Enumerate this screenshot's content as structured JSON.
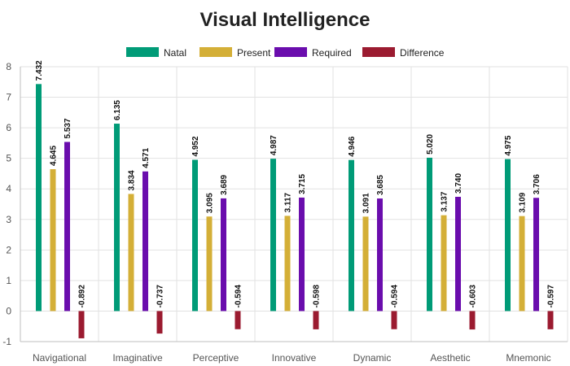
{
  "chart_data": {
    "type": "bar",
    "title": "Visual Intelligence",
    "categories": [
      "Navigational",
      "Imaginative",
      "Perceptive",
      "Innovative",
      "Dynamic",
      "Aesthetic",
      "Mnemonic"
    ],
    "series": [
      {
        "name": "Natal",
        "color": "#009b77",
        "values": [
          7.432,
          6.135,
          4.952,
          4.987,
          4.946,
          5.02,
          4.975
        ]
      },
      {
        "name": "Present",
        "color": "#d4af37",
        "values": [
          4.645,
          3.834,
          3.095,
          3.117,
          3.091,
          3.137,
          3.109
        ]
      },
      {
        "name": "Required",
        "color": "#6a0dad",
        "values": [
          5.537,
          4.571,
          3.689,
          3.715,
          3.685,
          3.74,
          3.706
        ]
      },
      {
        "name": "Difference",
        "color": "#9b1b30",
        "values": [
          -0.892,
          -0.737,
          -0.594,
          -0.598,
          -0.594,
          -0.603,
          -0.597
        ]
      }
    ],
    "xlabel": "",
    "ylabel": "",
    "ylim": [
      -1,
      8
    ],
    "yticks": [
      -1,
      0,
      1,
      2,
      3,
      4,
      5,
      6,
      7,
      8
    ],
    "legend_position": "top-center",
    "grid": true
  }
}
